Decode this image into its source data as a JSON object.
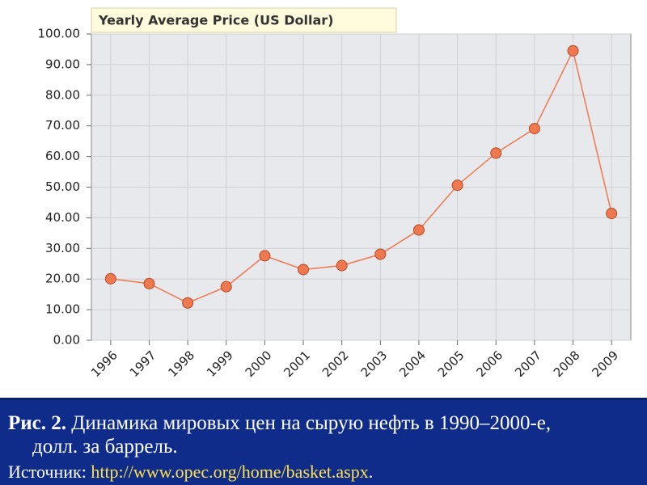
{
  "chart_data": {
    "type": "line",
    "title": "Yearly Average Price (US Dollar)",
    "categories": [
      "1996",
      "1997",
      "1998",
      "1999",
      "2000",
      "2001",
      "2002",
      "2003",
      "2004",
      "2005",
      "2006",
      "2007",
      "2008",
      "2009"
    ],
    "values": [
      20.1,
      18.5,
      12.2,
      17.5,
      27.6,
      23.1,
      24.4,
      28.1,
      36.0,
      50.6,
      61.1,
      69.1,
      94.5,
      41.4
    ],
    "color": "#f0784e",
    "ylim": [
      0,
      100
    ],
    "yticks": [
      {
        "value": 0,
        "label": "0.00"
      },
      {
        "value": 10,
        "label": "10.00"
      },
      {
        "value": 20,
        "label": "20.00"
      },
      {
        "value": 30,
        "label": "30.00"
      },
      {
        "value": 40,
        "label": "40.00"
      },
      {
        "value": 50,
        "label": "50.00"
      },
      {
        "value": 60,
        "label": "60.00"
      },
      {
        "value": 70,
        "label": "70.00"
      },
      {
        "value": 80,
        "label": "80.00"
      },
      {
        "value": 90,
        "label": "90.00"
      },
      {
        "value": 100,
        "label": "100.00"
      }
    ],
    "grid": true
  },
  "caption": {
    "label": "Рис. 2.",
    "text": "Динамика мировых цен на сырую нефть в 1990–2000-е, долл. за баррель."
  },
  "source": {
    "label": "Источник:",
    "url": "http://www.opec.org/home/basket.aspx",
    "end": "."
  }
}
